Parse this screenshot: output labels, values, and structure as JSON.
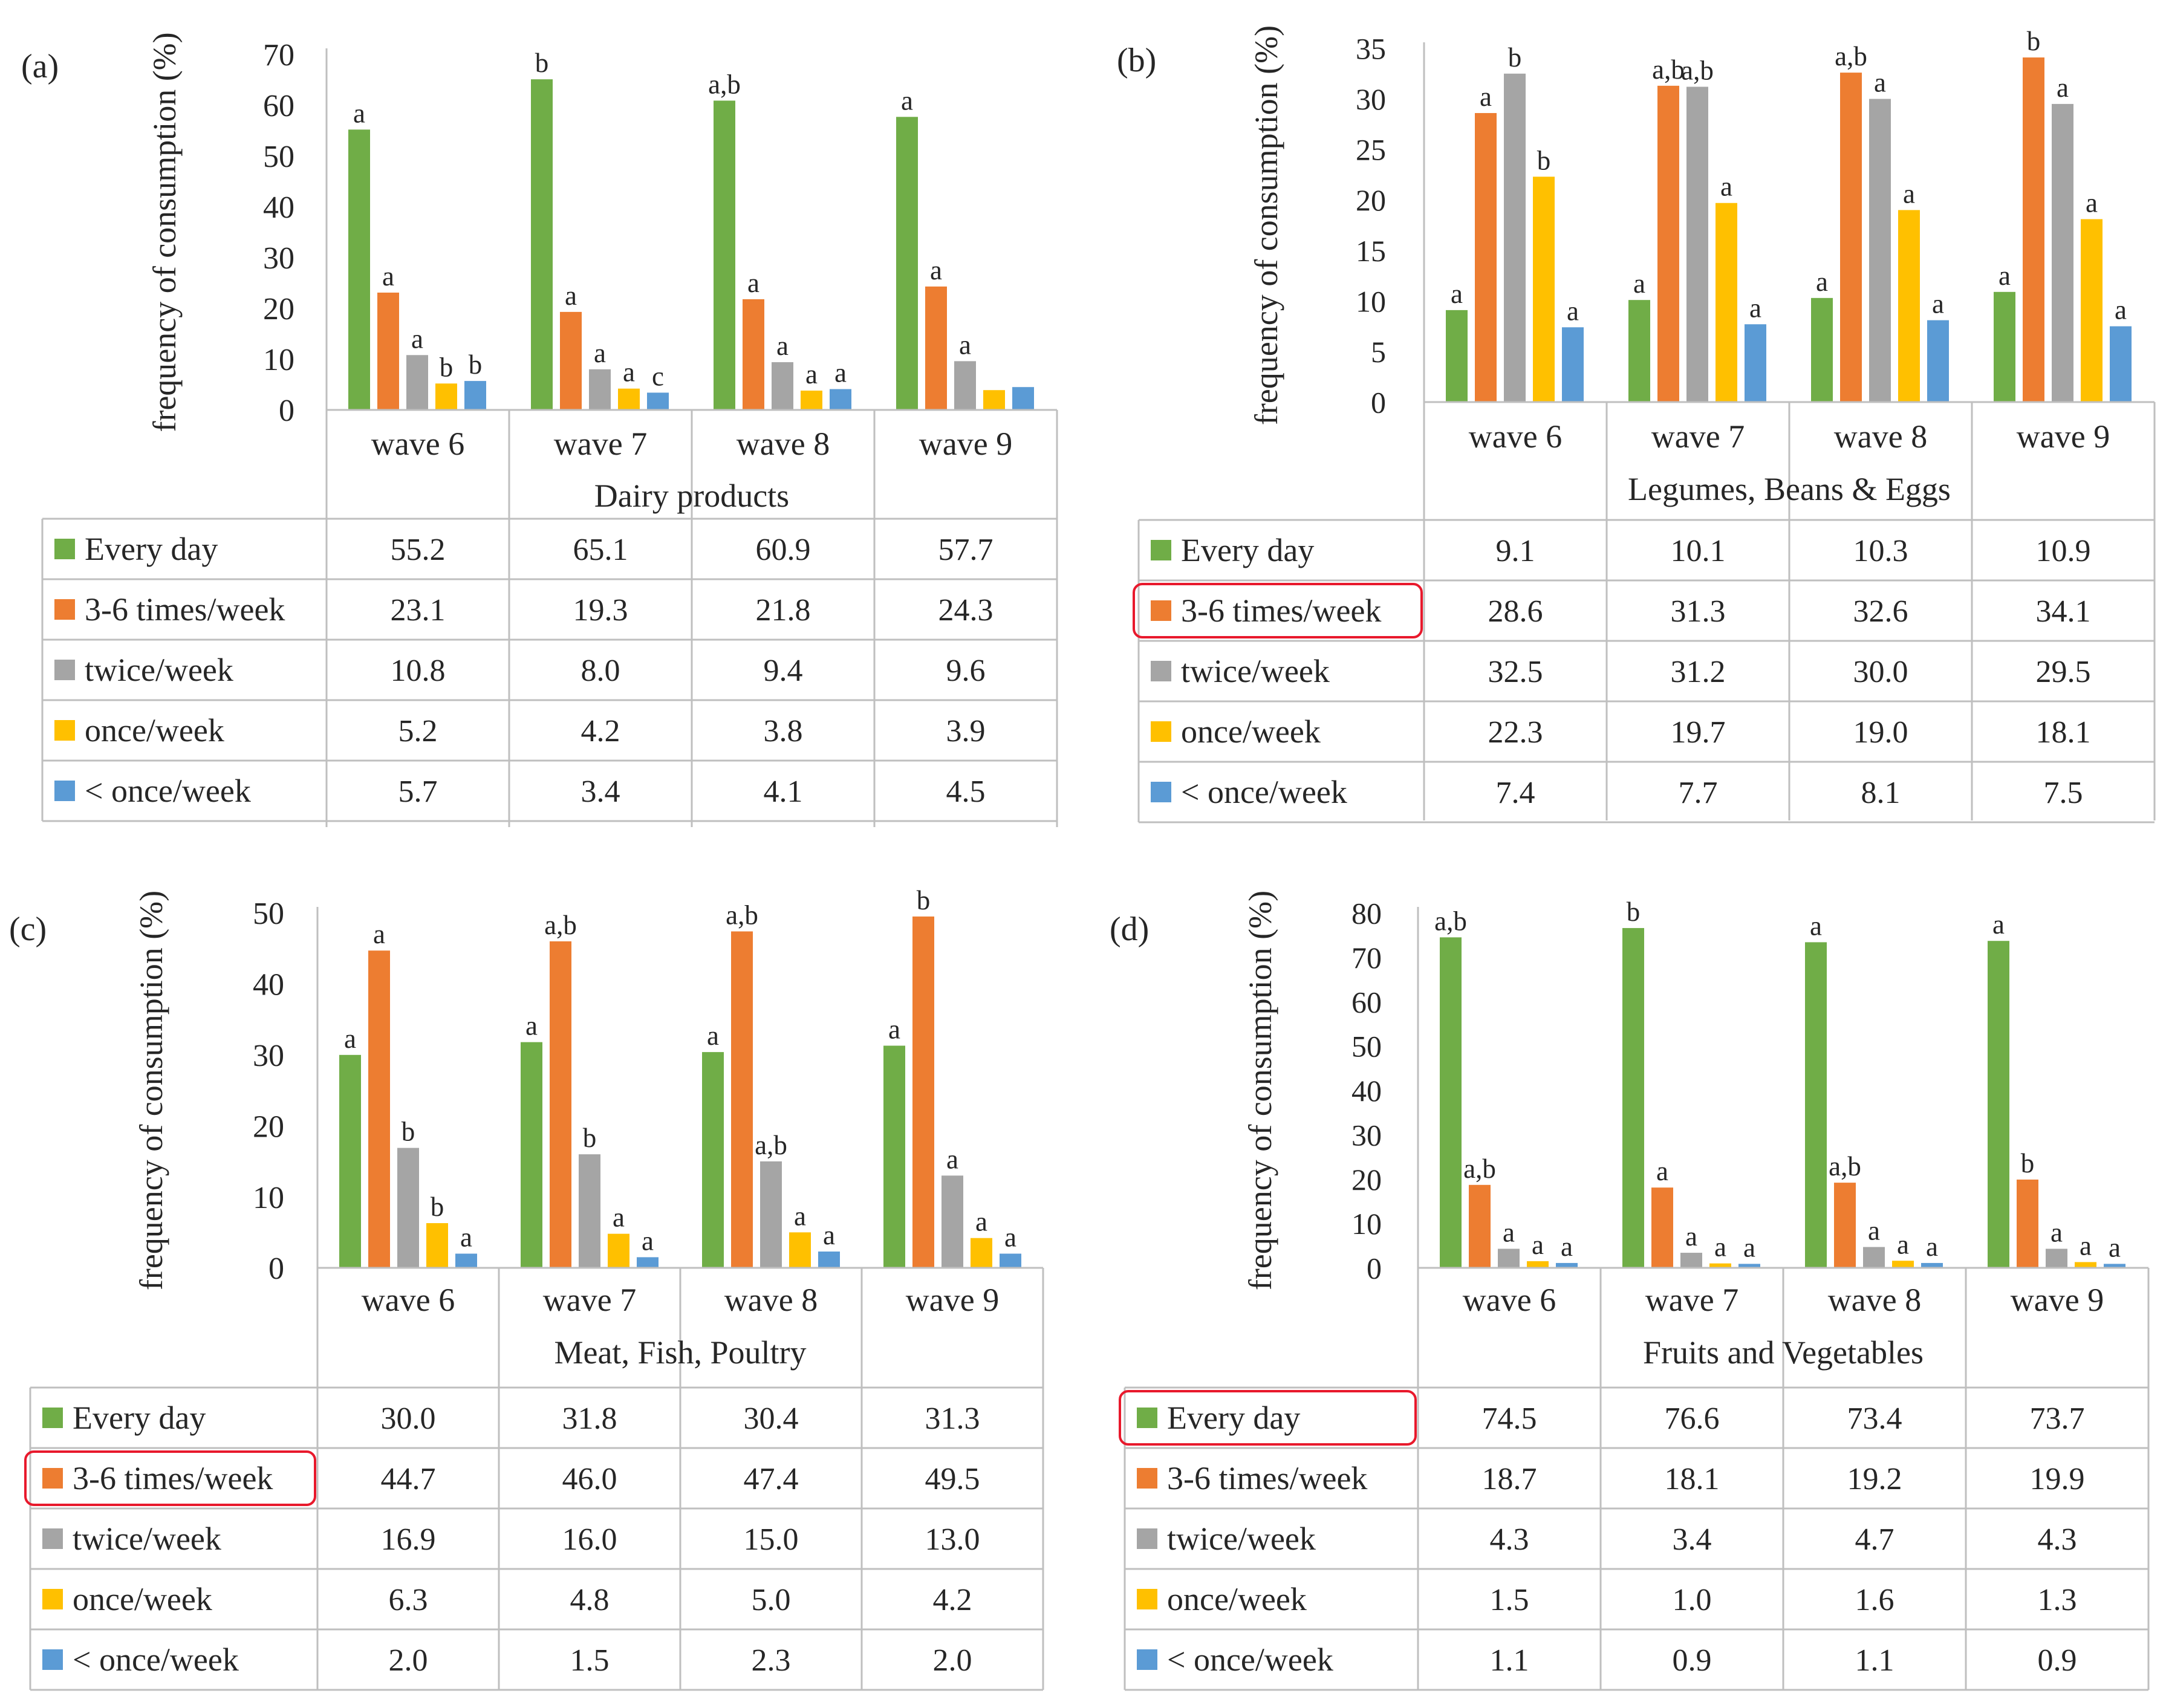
{
  "figure": {
    "waves": [
      "wave 6",
      "wave 7",
      "wave 8",
      "wave 9"
    ],
    "y_axis_label": "frequency of consumption (%)",
    "series_names": [
      "Every day",
      "3-6 times/week",
      "twice/week",
      "once/week",
      "< once/week"
    ],
    "series_colors": [
      "#70AD47",
      "#ED7D31",
      "#A5A5A5",
      "#FFC000",
      "#5B9BD5"
    ],
    "highlight_color": "#E8192C"
  },
  "chart_data": [
    {
      "panel_label": "(a)",
      "type": "bar",
      "title": "Dairy products",
      "xlabel": "Dairy products",
      "ylabel": "frequency of consumption (%)",
      "categories": [
        "wave 6",
        "wave 7",
        "wave 8",
        "wave 9"
      ],
      "ylim": [
        0,
        70
      ],
      "yticks": [
        0,
        10,
        20,
        30,
        40,
        50,
        60,
        70
      ],
      "grid": false,
      "highlight_row": null,
      "series": [
        {
          "name": "Every day",
          "values": [
            55.2,
            65.1,
            60.9,
            57.7
          ],
          "labels": [
            "a",
            "b",
            "a,b",
            "a"
          ]
        },
        {
          "name": "3-6 times/week",
          "values": [
            23.1,
            19.3,
            21.8,
            24.3
          ],
          "labels": [
            "a",
            "a",
            "a",
            "a"
          ]
        },
        {
          "name": "twice/week",
          "values": [
            10.8,
            8.0,
            9.4,
            9.6
          ],
          "labels": [
            "a",
            "a",
            "a",
            "a"
          ]
        },
        {
          "name": "once/week",
          "values": [
            5.2,
            4.2,
            3.8,
            3.9
          ],
          "labels": [
            "b",
            "a",
            "a",
            ""
          ]
        },
        {
          "name": "< once/week",
          "values": [
            5.7,
            3.4,
            4.1,
            4.5
          ],
          "labels": [
            "b",
            "c",
            "a",
            ""
          ]
        }
      ],
      "table": [
        [
          "55.2",
          "65.1",
          "60.9",
          "57.7"
        ],
        [
          "23.1",
          "19.3",
          "21.8",
          "24.3"
        ],
        [
          "10.8",
          "8.0",
          "9.4",
          "9.6"
        ],
        [
          "5.2",
          "4.2",
          "3.8",
          "3.9"
        ],
        [
          "5.7",
          "3.4",
          "4.1",
          "4.5"
        ]
      ]
    },
    {
      "panel_label": "(b)",
      "type": "bar",
      "title": "Legumes, Beans & Eggs",
      "xlabel": "Legumes, Beans & Eggs",
      "ylabel": "frequency of consumption (%)",
      "categories": [
        "wave 6",
        "wave 7",
        "wave 8",
        "wave 9"
      ],
      "ylim": [
        0,
        35
      ],
      "yticks": [
        0,
        5,
        10,
        15,
        20,
        25,
        30,
        35
      ],
      "grid": false,
      "highlight_row": 1,
      "series": [
        {
          "name": "Every day",
          "values": [
            9.1,
            10.1,
            10.3,
            10.9
          ],
          "labels": [
            "a",
            "a",
            "a",
            "a"
          ]
        },
        {
          "name": "3-6 times/week",
          "values": [
            28.6,
            31.3,
            32.6,
            34.1
          ],
          "labels": [
            "a",
            "a,b",
            "a,b",
            "b"
          ]
        },
        {
          "name": "twice/week",
          "values": [
            32.5,
            31.2,
            30.0,
            29.5
          ],
          "labels": [
            "b",
            "a,b",
            "a",
            "a"
          ]
        },
        {
          "name": "once/week",
          "values": [
            22.3,
            19.7,
            19.0,
            18.1
          ],
          "labels": [
            "b",
            "a",
            "a",
            "a"
          ]
        },
        {
          "name": "< once/week",
          "values": [
            7.4,
            7.7,
            8.1,
            7.5
          ],
          "labels": [
            "a",
            "a",
            "a",
            "a"
          ]
        }
      ],
      "table": [
        [
          "9.1",
          "10.1",
          "10.3",
          "10.9"
        ],
        [
          "28.6",
          "31.3",
          "32.6",
          "34.1"
        ],
        [
          "32.5",
          "31.2",
          "30.0",
          "29.5"
        ],
        [
          "22.3",
          "19.7",
          "19.0",
          "18.1"
        ],
        [
          "7.4",
          "7.7",
          "8.1",
          "7.5"
        ]
      ]
    },
    {
      "panel_label": "(c)",
      "type": "bar",
      "title": "Meat, Fish, Poultry",
      "xlabel": "Meat, Fish, Poultry",
      "ylabel": "frequency of consumption (%)",
      "categories": [
        "wave 6",
        "wave 7",
        "wave 8",
        "wave 9"
      ],
      "ylim": [
        0,
        50
      ],
      "yticks": [
        0,
        10,
        20,
        30,
        40,
        50
      ],
      "grid": false,
      "highlight_row": 1,
      "series": [
        {
          "name": "Every day",
          "values": [
            30.0,
            31.8,
            30.4,
            31.3
          ],
          "labels": [
            "a",
            "a",
            "a",
            "a"
          ]
        },
        {
          "name": "3-6 times/week",
          "values": [
            44.7,
            46.0,
            47.4,
            49.5
          ],
          "labels": [
            "a",
            "a,b",
            "a,b",
            "b"
          ]
        },
        {
          "name": "twice/week",
          "values": [
            16.9,
            16.0,
            15.0,
            13.0
          ],
          "labels": [
            "b",
            "b",
            "a,b",
            "a"
          ]
        },
        {
          "name": "once/week",
          "values": [
            6.3,
            4.8,
            5.0,
            4.2
          ],
          "labels": [
            "b",
            "a",
            "a",
            "a"
          ]
        },
        {
          "name": "< once/week",
          "values": [
            2.0,
            1.5,
            2.3,
            2.0
          ],
          "labels": [
            "a",
            "a",
            "a",
            "a"
          ]
        }
      ],
      "table": [
        [
          "30.0",
          "31.8",
          "30.4",
          "31.3"
        ],
        [
          "44.7",
          "46.0",
          "47.4",
          "49.5"
        ],
        [
          "16.9",
          "16.0",
          "15.0",
          "13.0"
        ],
        [
          "6.3",
          "4.8",
          "5.0",
          "4.2"
        ],
        [
          "2.0",
          "1.5",
          "2.3",
          "2.0"
        ]
      ]
    },
    {
      "panel_label": "(d)",
      "type": "bar",
      "title": "Fruits and Vegetables",
      "xlabel": "Fruits and Vegetables",
      "ylabel": "frequency of consumption (%)",
      "categories": [
        "wave 6",
        "wave 7",
        "wave 8",
        "wave 9"
      ],
      "ylim": [
        0,
        80
      ],
      "yticks": [
        0,
        10,
        20,
        30,
        40,
        50,
        60,
        70,
        80
      ],
      "grid": false,
      "highlight_row": 0,
      "series": [
        {
          "name": "Every day",
          "values": [
            74.5,
            76.6,
            73.4,
            73.7
          ],
          "labels": [
            "a,b",
            "b",
            "a",
            "a"
          ]
        },
        {
          "name": "3-6 times/week",
          "values": [
            18.7,
            18.1,
            19.2,
            19.9
          ],
          "labels": [
            "a,b",
            "a",
            "a,b",
            "b"
          ]
        },
        {
          "name": "twice/week",
          "values": [
            4.3,
            3.4,
            4.7,
            4.3
          ],
          "labels": [
            "a",
            "a",
            "a",
            "a"
          ]
        },
        {
          "name": "once/week",
          "values": [
            1.5,
            1.0,
            1.6,
            1.3
          ],
          "labels": [
            "a",
            "a",
            "a",
            "a"
          ]
        },
        {
          "name": "< once/week",
          "values": [
            1.1,
            0.9,
            1.1,
            0.9
          ],
          "labels": [
            "a",
            "a",
            "a",
            "a"
          ]
        }
      ],
      "table": [
        [
          "74.5",
          "76.6",
          "73.4",
          "73.7"
        ],
        [
          "18.7",
          "18.1",
          "19.2",
          "19.9"
        ],
        [
          "4.3",
          "3.4",
          "4.7",
          "4.3"
        ],
        [
          "1.5",
          "1.0",
          "1.6",
          "1.3"
        ],
        [
          "1.1",
          "0.9",
          "1.1",
          "0.9"
        ]
      ]
    }
  ]
}
